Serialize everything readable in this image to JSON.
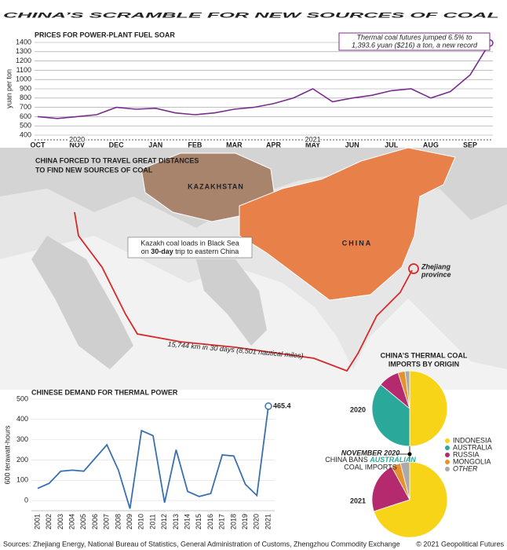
{
  "title": "CHINA’S SCRAMBLE FOR NEW SOURCES OF COAL",
  "chart_data": [
    {
      "type": "line",
      "title": "PRICES FOR POWER-PLANT FUEL SOAR",
      "ylabel": "yuan per ton",
      "categories": [
        "OCT",
        null,
        "NOV",
        null,
        "DEC",
        null,
        "JAN",
        null,
        "FEB",
        null,
        "MAR",
        null,
        "APR",
        null,
        "MAY",
        null,
        "JUN",
        null,
        "JUL",
        null,
        "AUG",
        null,
        "SEP",
        null
      ],
      "year_labels": [
        "2020",
        "2021"
      ],
      "values": [
        600,
        580,
        600,
        620,
        700,
        680,
        690,
        640,
        620,
        640,
        680,
        700,
        740,
        800,
        900,
        760,
        800,
        830,
        880,
        900,
        800,
        870,
        1050,
        1393.6
      ],
      "color": "#7b2d8e",
      "ylim": [
        400,
        1400
      ],
      "yticks": [
        400,
        500,
        600,
        700,
        800,
        900,
        1000,
        1100,
        1200,
        1300,
        1400
      ],
      "grid": true,
      "annotation": [
        "Thermal coal futures jumped 6.5% to",
        "1,393.6 yuan ($216) a ton, a new record"
      ]
    },
    {
      "type": "line",
      "title": "CHINESE DEMAND FOR THERMAL POWER",
      "ylabel": "600 terawatt-hours",
      "categories": [
        "2001",
        "2002",
        "2003",
        "2004",
        "2005",
        "2006",
        "2007",
        "2008",
        "2009",
        "2010",
        "2011",
        "2012",
        "2013",
        "2014",
        "2015",
        "2016",
        "2017",
        "2018",
        "2019",
        "2020",
        "2021"
      ],
      "values": [
        60,
        85,
        145,
        150,
        145,
        210,
        275,
        150,
        -40,
        345,
        320,
        -10,
        250,
        45,
        20,
        35,
        225,
        220,
        80,
        25,
        465.4
      ],
      "color": "#3a6fb0",
      "ylim": [
        -50,
        500
      ],
      "yticks": [
        0,
        100,
        200,
        300,
        400,
        500
      ],
      "grid": true
    },
    {
      "type": "pie",
      "title": [
        "CHINA’S THERMAL COAL",
        "IMPORTS BY ORIGIN"
      ],
      "categories": [
        "INDONESIA",
        "AUSTRALIA",
        "RUSSIA",
        "MONGOLIA",
        "OTHER"
      ],
      "colors": [
        "#f7d417",
        "#2aa89a",
        "#b5296f",
        "#e8902a",
        "#aaaaaa"
      ],
      "series": [
        {
          "name": "2020",
          "values": [
            50,
            36,
            9,
            3,
            2
          ]
        },
        {
          "name": "2021",
          "values": [
            70,
            0,
            22,
            4,
            4
          ]
        }
      ],
      "annotation": [
        "NOVEMBER 2020",
        "CHINA BANS",
        "AUSTRALIAN",
        "COAL IMPORTS"
      ]
    }
  ],
  "map": {
    "title": [
      "CHINA FORCED TO TRAVEL GREAT DISTANCES",
      "TO FIND NEW SOURCES OF COAL"
    ],
    "kazakhstan": "KAZAKHSTAN",
    "china": "CHINA",
    "zhejiang": [
      "Zhejiang",
      "province"
    ],
    "kazakh_note": [
      "Kazakh coal loads in Black Sea",
      "on",
      "30-day",
      "trip to eastern China"
    ],
    "route": "15,744 km in 30 days (8,501 nautical miles)"
  },
  "footer": {
    "sources": "Sources: Zhejiang Energy, National Bureau of Statistics, General Administration of Customs, Zhengzhou Commodity Exchange",
    "copyright": "© 2021 Geopolitical Futures"
  }
}
